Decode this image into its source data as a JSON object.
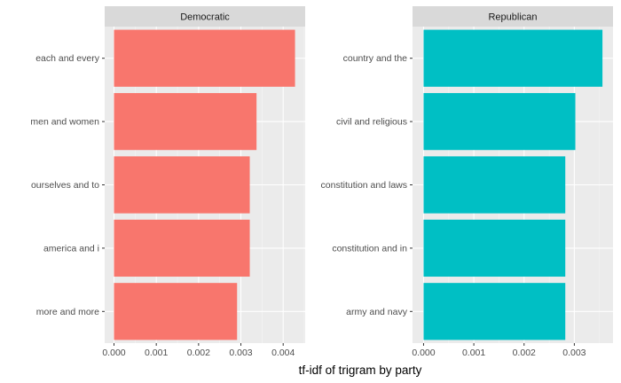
{
  "chart_data": {
    "type": "bar",
    "orientation": "horizontal",
    "xlabel": "tf-idf of trigram by party",
    "ylabel": "",
    "grid": true,
    "panels": [
      {
        "name": "Democratic",
        "color": "#F8766D",
        "xlim": [
          -0.00022,
          0.00452
        ],
        "ticks": [
          "0.000",
          "0.001",
          "0.002",
          "0.003",
          "0.004"
        ],
        "tick_values": [
          0,
          0.001,
          0.002,
          0.003,
          0.004
        ],
        "categories": [
          "each and every",
          "men and women",
          "ourselves and to",
          "america and i",
          "more and more"
        ],
        "values": [
          0.00428,
          0.00337,
          0.00321,
          0.00321,
          0.00291
        ]
      },
      {
        "name": "Republican",
        "color": "#00BFC4",
        "xlim": [
          -0.00022,
          0.00377
        ],
        "ticks": [
          "0.000",
          "0.001",
          "0.002",
          "0.003"
        ],
        "tick_values": [
          0,
          0.001,
          0.002,
          0.003
        ],
        "categories": [
          "country and the",
          "civil and religious",
          "constitution and laws",
          "constitution and in",
          "army and navy"
        ],
        "values": [
          0.00356,
          0.00302,
          0.00282,
          0.00282,
          0.00282
        ]
      }
    ]
  }
}
